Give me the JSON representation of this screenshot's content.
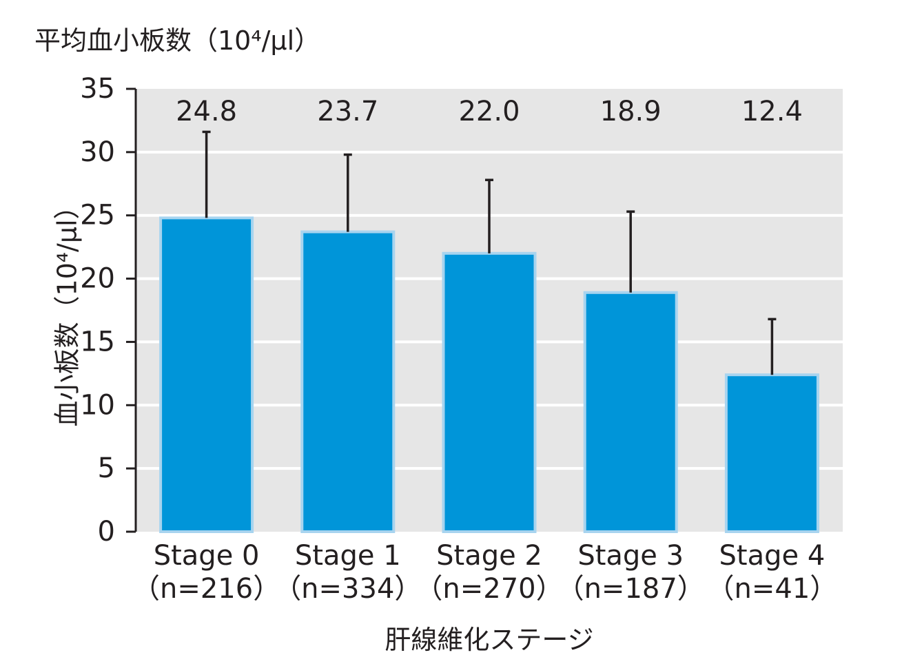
{
  "chart_data": {
    "type": "bar",
    "title": "平均血小板数（10⁴/μl）",
    "ylabel": "血小板数（10⁴/μl）",
    "xlabel": "肝線維化ステージ",
    "categories": [
      "Stage 0",
      "Stage 1",
      "Stage 2",
      "Stage 3",
      "Stage 4"
    ],
    "n_labels": [
      "（n=216）",
      "（n=334）",
      "（n=270）",
      "（n=187）",
      "（n=41）"
    ],
    "values": [
      24.8,
      23.7,
      22.0,
      18.9,
      12.4
    ],
    "value_labels": [
      "24.8",
      "23.7",
      "22.0",
      "18.9",
      "12.4"
    ],
    "error_upper": [
      31.6,
      29.8,
      27.8,
      25.3,
      16.8
    ],
    "ylim": [
      0,
      35
    ],
    "yticks": [
      0,
      5,
      10,
      15,
      20,
      25,
      30,
      35
    ],
    "ytick_labels": [
      "0",
      "5",
      "10",
      "15",
      "20",
      "25",
      "30",
      "35"
    ],
    "grid": true,
    "colors": {
      "bar": "#0095d9",
      "bar_edge": "#a8d4ef",
      "plot_bg": "#e6e6e6",
      "grid": "#ffffff",
      "error": "#231f20",
      "text": "#231f20"
    }
  }
}
